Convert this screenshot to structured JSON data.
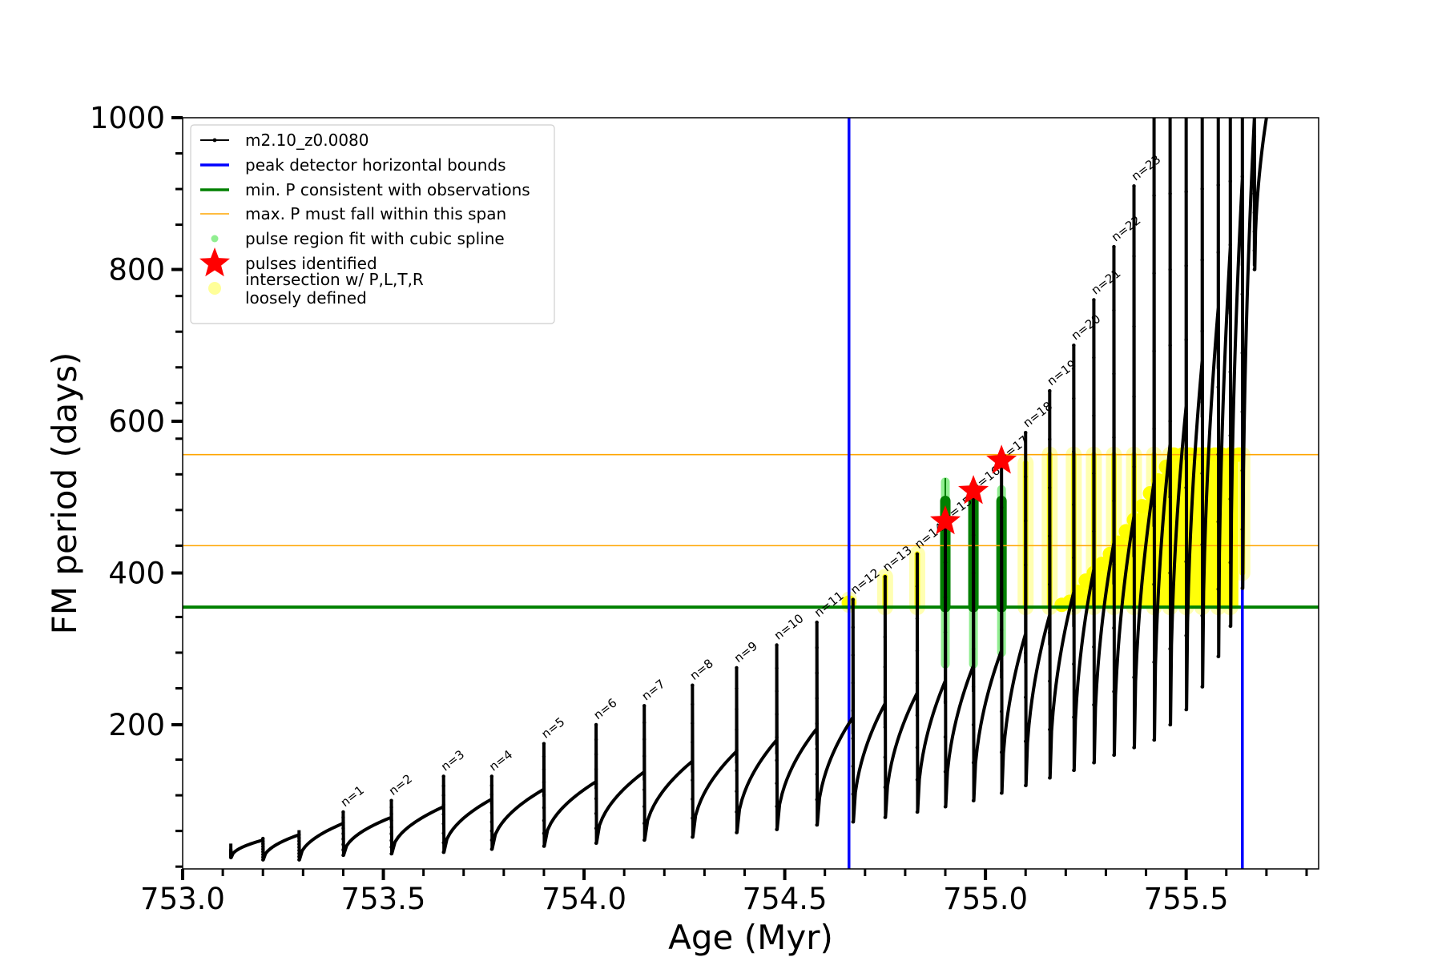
{
  "chart_data": {
    "type": "line",
    "xlabel": "Age (Myr)",
    "ylabel": "FM period (days)",
    "xlim": [
      753.0,
      755.83
    ],
    "ylim": [
      10,
      1000
    ],
    "x_ticks": [
      753.0,
      753.5,
      754.0,
      754.5,
      755.0,
      755.5
    ],
    "x_tick_labels": [
      "753.0",
      "753.5",
      "754.0",
      "754.5",
      "755.0",
      "755.5"
    ],
    "y_ticks": [
      200,
      400,
      600,
      800,
      1000
    ],
    "y_tick_labels": [
      "200",
      "400",
      "600",
      "800",
      "1000"
    ],
    "grid": false,
    "legend_position": "top-left",
    "legend": [
      {
        "label": "m2.10_z0.0080",
        "kind": "line-marker",
        "color": "#000000"
      },
      {
        "label": "peak detector horizontal bounds",
        "kind": "line",
        "color": "#0000ff"
      },
      {
        "label": "min. P consistent with observations",
        "kind": "line",
        "color": "#008000"
      },
      {
        "label": "max. P must fall within this span",
        "kind": "line",
        "color": "#ffa500"
      },
      {
        "label": "pulse region fit with cubic spline",
        "kind": "dot",
        "color": "#90ee90"
      },
      {
        "label": "pulses identified",
        "kind": "star",
        "color": "#ff0000"
      },
      {
        "label": "intersection w/ P,L,T,R\nloosely defined",
        "kind": "dot",
        "color": "#ffff99"
      }
    ],
    "vertical_lines": {
      "color": "#0000ff",
      "x": [
        754.66,
        755.64
      ]
    },
    "horizontal_lines": [
      {
        "name": "min. P",
        "color": "#008000",
        "y": 355
      },
      {
        "name": "max. P low",
        "color": "#ffa500",
        "y": 436
      },
      {
        "name": "max. P high",
        "color": "#ffa500",
        "y": 556
      }
    ],
    "series": [
      {
        "name": "m2.10_z0.0080",
        "color": "#000000",
        "pulses": [
          {
            "x0": 753.12,
            "x1": 753.2,
            "min": 25,
            "max": 35,
            "end": 48,
            "label": ""
          },
          {
            "x0": 753.2,
            "x1": 753.29,
            "min": 22,
            "max": 50,
            "end": 55,
            "label": ""
          },
          {
            "x0": 753.29,
            "x1": 753.4,
            "min": 22,
            "max": 55,
            "end": 70,
            "label": ""
          },
          {
            "x0": 753.4,
            "x1": 753.52,
            "min": 28,
            "max": 85,
            "end": 78,
            "label": "n=1"
          },
          {
            "x0": 753.52,
            "x1": 753.65,
            "min": 30,
            "max": 100,
            "end": 92,
            "label": "n=2"
          },
          {
            "x0": 753.65,
            "x1": 753.77,
            "min": 32,
            "max": 132,
            "end": 102,
            "label": "n=3"
          },
          {
            "x0": 753.77,
            "x1": 753.9,
            "min": 36,
            "max": 132,
            "end": 115,
            "label": "n=4"
          },
          {
            "x0": 753.9,
            "x1": 754.03,
            "min": 40,
            "max": 175,
            "end": 125,
            "label": "n=5"
          },
          {
            "x0": 754.03,
            "x1": 754.15,
            "min": 44,
            "max": 200,
            "end": 138,
            "label": "n=6"
          },
          {
            "x0": 754.15,
            "x1": 754.27,
            "min": 48,
            "max": 225,
            "end": 152,
            "label": "n=7"
          },
          {
            "x0": 754.27,
            "x1": 754.38,
            "min": 52,
            "max": 252,
            "end": 165,
            "label": "n=8"
          },
          {
            "x0": 754.38,
            "x1": 754.48,
            "min": 58,
            "max": 275,
            "end": 180,
            "label": "n=9"
          },
          {
            "x0": 754.48,
            "x1": 754.58,
            "min": 62,
            "max": 305,
            "end": 195,
            "label": "n=10"
          },
          {
            "x0": 754.58,
            "x1": 754.67,
            "min": 68,
            "max": 335,
            "end": 210,
            "label": "n=11"
          },
          {
            "x0": 754.67,
            "x1": 754.75,
            "min": 72,
            "max": 365,
            "end": 228,
            "label": "n=12"
          },
          {
            "x0": 754.75,
            "x1": 754.83,
            "min": 78,
            "max": 395,
            "end": 242,
            "label": "n=13"
          },
          {
            "x0": 754.83,
            "x1": 754.9,
            "min": 85,
            "max": 425,
            "end": 258,
            "label": "n=14"
          },
          {
            "x0": 754.9,
            "x1": 754.97,
            "min": 92,
            "max": 460,
            "end": 278,
            "label": "n=15"
          },
          {
            "x0": 754.97,
            "x1": 755.04,
            "min": 100,
            "max": 500,
            "end": 298,
            "label": "n=16"
          },
          {
            "x0": 755.04,
            "x1": 755.1,
            "min": 110,
            "max": 540,
            "end": 320,
            "label": "n=17"
          },
          {
            "x0": 755.1,
            "x1": 755.16,
            "min": 120,
            "max": 585,
            "end": 345,
            "label": "n=18"
          },
          {
            "x0": 755.16,
            "x1": 755.22,
            "min": 130,
            "max": 640,
            "end": 375,
            "label": "n=19"
          },
          {
            "x0": 755.22,
            "x1": 755.27,
            "min": 140,
            "max": 700,
            "end": 405,
            "label": "n=20"
          },
          {
            "x0": 755.27,
            "x1": 755.32,
            "min": 150,
            "max": 760,
            "end": 440,
            "label": "n=21"
          },
          {
            "x0": 755.32,
            "x1": 755.37,
            "min": 160,
            "max": 830,
            "end": 475,
            "label": "n=22"
          },
          {
            "x0": 755.37,
            "x1": 755.42,
            "min": 170,
            "max": 910,
            "end": 520,
            "label": "n=23"
          },
          {
            "x0": 755.42,
            "x1": 755.46,
            "min": 180,
            "max": 1000,
            "end": 570,
            "label": ""
          },
          {
            "x0": 755.46,
            "x1": 755.5,
            "min": 200,
            "max": 1000,
            "end": 620,
            "label": ""
          },
          {
            "x0": 755.5,
            "x1": 755.54,
            "min": 220,
            "max": 1000,
            "end": 680,
            "label": ""
          },
          {
            "x0": 755.54,
            "x1": 755.58,
            "min": 250,
            "max": 1000,
            "end": 750,
            "label": ""
          },
          {
            "x0": 755.58,
            "x1": 755.61,
            "min": 290,
            "max": 1000,
            "end": 830,
            "label": ""
          },
          {
            "x0": 755.61,
            "x1": 755.64,
            "min": 330,
            "max": 1000,
            "end": 920,
            "label": ""
          },
          {
            "x0": 755.64,
            "x1": 755.67,
            "min": 380,
            "max": 1000,
            "end": 1000,
            "label": ""
          },
          {
            "x0": 755.67,
            "x1": 755.7,
            "min": 800,
            "max": 1000,
            "end": 1000,
            "label": ""
          }
        ]
      },
      {
        "name": "pulse region fit with cubic spline",
        "color": "#90ee90",
        "regions": [
          {
            "x": 754.9,
            "y_low": 280,
            "y_high": 520
          },
          {
            "x": 754.97,
            "y_low": 280,
            "y_high": 515
          },
          {
            "x": 755.04,
            "y_low": 295,
            "y_high": 510
          }
        ]
      },
      {
        "name": "cubic spline core",
        "color": "#008000",
        "regions": [
          {
            "x": 754.9,
            "y_low": 355,
            "y_high": 495
          },
          {
            "x": 754.97,
            "y_low": 355,
            "y_high": 495
          },
          {
            "x": 755.04,
            "y_low": 355,
            "y_high": 495
          }
        ]
      },
      {
        "name": "pulses identified",
        "color": "#ff0000",
        "points": [
          {
            "x": 754.9,
            "y": 468
          },
          {
            "x": 754.97,
            "y": 508
          },
          {
            "x": 755.04,
            "y": 548
          }
        ]
      },
      {
        "name": "intersection w/ P,L,T,R loosely defined",
        "color": "#ffff00",
        "vertical_bands": [
          {
            "x": 754.66,
            "y_low": 358,
            "y_high": 365
          },
          {
            "x": 754.75,
            "y_low": 355,
            "y_high": 395
          },
          {
            "x": 754.83,
            "y_low": 355,
            "y_high": 425
          },
          {
            "x": 755.1,
            "y_low": 355,
            "y_high": 545
          },
          {
            "x": 755.16,
            "y_low": 355,
            "y_high": 556
          },
          {
            "x": 755.22,
            "y_low": 355,
            "y_high": 556
          },
          {
            "x": 755.27,
            "y_low": 355,
            "y_high": 556
          },
          {
            "x": 755.32,
            "y_low": 355,
            "y_high": 556
          },
          {
            "x": 755.37,
            "y_low": 355,
            "y_high": 556
          },
          {
            "x": 755.42,
            "y_low": 355,
            "y_high": 556
          },
          {
            "x": 755.46,
            "y_low": 355,
            "y_high": 556
          },
          {
            "x": 755.5,
            "y_low": 355,
            "y_high": 556
          },
          {
            "x": 755.54,
            "y_low": 355,
            "y_high": 556
          },
          {
            "x": 755.58,
            "y_low": 355,
            "y_high": 556
          },
          {
            "x": 755.61,
            "y_low": 355,
            "y_high": 556
          },
          {
            "x": 755.64,
            "y_low": 400,
            "y_high": 556
          }
        ],
        "curve_points": [
          [
            755.19,
            358
          ],
          [
            755.21,
            362
          ],
          [
            755.23,
            375
          ],
          [
            755.25,
            390
          ],
          [
            755.27,
            400
          ],
          [
            755.29,
            412
          ],
          [
            755.31,
            425
          ],
          [
            755.33,
            440
          ],
          [
            755.35,
            455
          ],
          [
            755.37,
            470
          ],
          [
            755.39,
            488
          ],
          [
            755.41,
            505
          ],
          [
            755.43,
            522
          ],
          [
            755.45,
            540
          ],
          [
            755.47,
            556
          ],
          [
            755.49,
            556
          ],
          [
            755.51,
            556
          ],
          [
            755.53,
            556
          ],
          [
            755.55,
            556
          ],
          [
            755.57,
            556
          ],
          [
            755.59,
            556
          ],
          [
            755.61,
            556
          ],
          [
            755.63,
            556
          ]
        ]
      }
    ]
  }
}
